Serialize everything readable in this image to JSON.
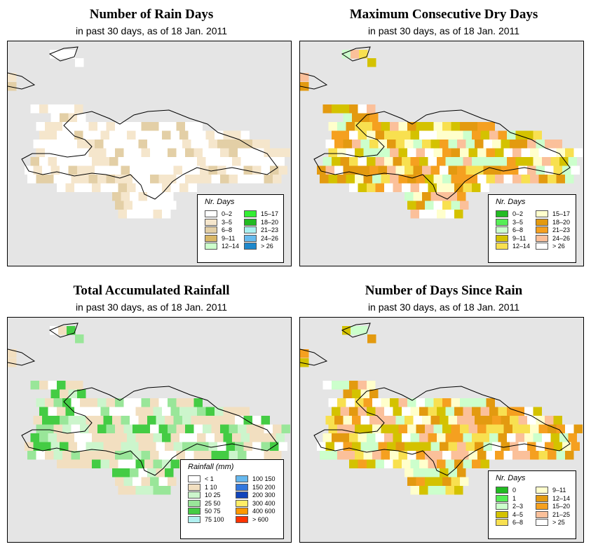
{
  "panels": [
    {
      "title": "Number of Rain Days",
      "subtitle": "in past 30 days, as of  18 Jan. 2011",
      "legend": {
        "title": "Nr. Days",
        "items": [
          {
            "label": "0–2",
            "color": "#ffffff"
          },
          {
            "label": "3–5",
            "color": "#f5e6cc"
          },
          {
            "label": "6–8",
            "color": "#e3cfa6"
          },
          {
            "label": "9–11",
            "color": "#d9b766"
          },
          {
            "label": "12–14",
            "color": "#ccffcc"
          },
          {
            "label": "15–17",
            "color": "#33ee33"
          },
          {
            "label": "18–20",
            "color": "#22bb22"
          },
          {
            "label": "21–23",
            "color": "#aaf0f0"
          },
          {
            "label": "24–26",
            "color": "#66bbee"
          },
          {
            "label": "> 26",
            "color": "#1e88cc"
          }
        ]
      }
    },
    {
      "title": "Maximum Consecutive Dry Days",
      "subtitle": "in past 30 days, as of  18 Jan. 2011",
      "legend": {
        "title": "Nr. Days",
        "items": [
          {
            "label": "0–2",
            "color": "#22bb22"
          },
          {
            "label": "3–5",
            "color": "#55ee55"
          },
          {
            "label": "6–8",
            "color": "#ccffcc"
          },
          {
            "label": "9–11",
            "color": "#d4c200"
          },
          {
            "label": "12–14",
            "color": "#f8e050"
          },
          {
            "label": "15–17",
            "color": "#ffffcc"
          },
          {
            "label": "18–20",
            "color": "#e39a10"
          },
          {
            "label": "21–23",
            "color": "#f5a020"
          },
          {
            "label": "24–26",
            "color": "#fbc09a"
          },
          {
            "label": "> 26",
            "color": "#ffffff"
          }
        ]
      }
    },
    {
      "title": "Total Accumulated Rainfall",
      "subtitle": "in past 30 days, as of  18 Jan. 2011",
      "legend": {
        "title": "Rainfall (mm)",
        "items": [
          {
            "label": "< 1",
            "color": "#ffffff"
          },
          {
            "label": "1    10",
            "color": "#f2dfc0"
          },
          {
            "label": "10    25",
            "color": "#ccf5cc"
          },
          {
            "label": "25    50",
            "color": "#99e699"
          },
          {
            "label": "50    75",
            "color": "#44cc44"
          },
          {
            "label": "75   100",
            "color": "#b0f0f0"
          },
          {
            "label": "100  150",
            "color": "#66b8ee"
          },
          {
            "label": "150  200",
            "color": "#3377dd"
          },
          {
            "label": "200  300",
            "color": "#1144bb"
          },
          {
            "label": "300  400",
            "color": "#ffee66"
          },
          {
            "label": "400  600",
            "color": "#ff9900"
          },
          {
            "label": "> 600",
            "color": "#ff3300"
          }
        ]
      }
    },
    {
      "title": "Number of Days Since Rain",
      "subtitle": "in past 30 days, as of  18 Jan. 2011",
      "legend": {
        "title": "Nr. Days",
        "items": [
          {
            "label": "0",
            "color": "#22bb22"
          },
          {
            "label": "1",
            "color": "#55ee55"
          },
          {
            "label": "2–3",
            "color": "#ccffcc"
          },
          {
            "label": "4–5",
            "color": "#d4c200"
          },
          {
            "label": "6–8",
            "color": "#f8e050"
          },
          {
            "label": "9–11",
            "color": "#ffffcc"
          },
          {
            "label": "12–14",
            "color": "#e39a10"
          },
          {
            "label": "15–20",
            "color": "#f5a020"
          },
          {
            "label": "21–25",
            "color": "#fbc09a"
          },
          {
            "label": "> 25",
            "color": "#ffffff"
          }
        ]
      }
    }
  ],
  "map_style": {
    "ocean": "#e5e5e5",
    "coastline": "#000000"
  }
}
